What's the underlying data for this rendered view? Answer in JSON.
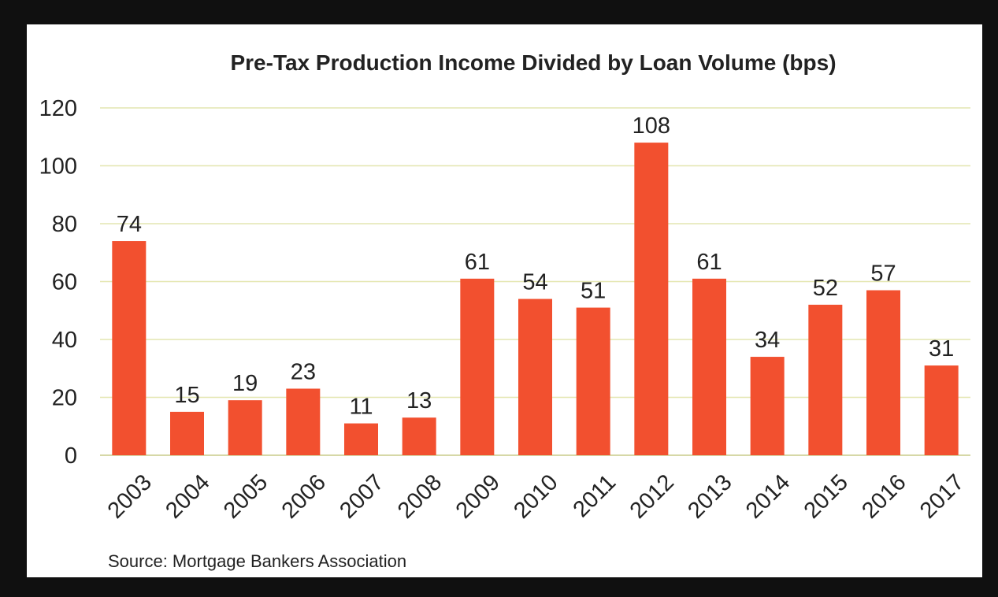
{
  "chart_data": {
    "type": "bar",
    "title": "Pre-Tax Production Income Divided by Loan Volume (bps)",
    "categories": [
      "2003",
      "2004",
      "2005",
      "2006",
      "2007",
      "2008",
      "2009",
      "2010",
      "2011",
      "2012",
      "2013",
      "2014",
      "2015",
      "2016",
      "2017"
    ],
    "values": [
      74,
      15,
      19,
      23,
      11,
      13,
      61,
      54,
      51,
      108,
      61,
      34,
      52,
      57,
      31
    ],
    "ylim": [
      0,
      120
    ],
    "yticks": [
      "0",
      "20",
      "40",
      "60",
      "80",
      "100",
      "120"
    ],
    "grid": true,
    "bar_color": "#f2502f",
    "grid_color": "#e4e6b0",
    "source": "Source: Mortgage Bankers Association"
  }
}
